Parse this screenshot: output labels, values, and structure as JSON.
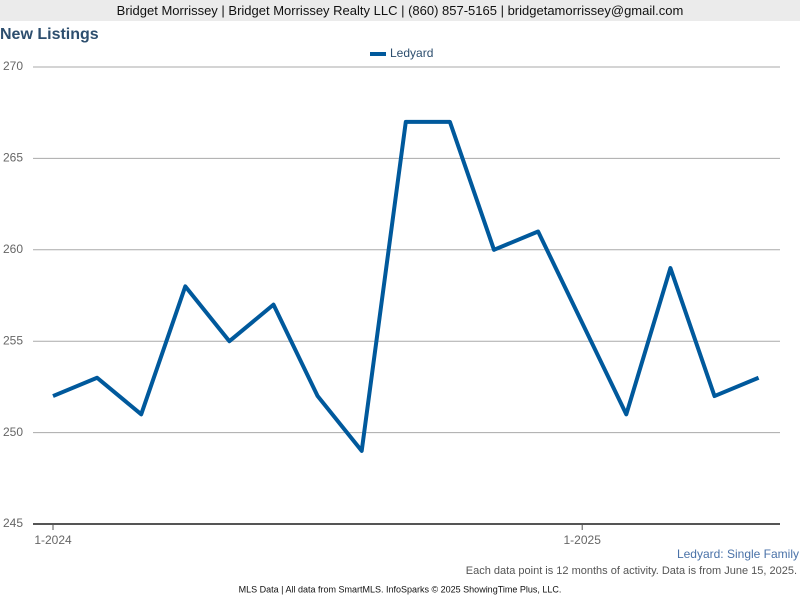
{
  "header": "Bridget Morrissey | Bridget Morrissey Realty LLC | (860) 857-5165 | bridgetamorrissey@gmail.com",
  "chart_data": {
    "type": "line",
    "title": "New Listings",
    "categories": [
      "1-2024",
      null,
      null,
      null,
      null,
      null,
      null,
      null,
      null,
      null,
      null,
      null,
      "1-2025",
      null,
      null,
      null,
      null
    ],
    "series": [
      {
        "name": "Ledyard",
        "color": "#00599c",
        "values": [
          252,
          253,
          251,
          258,
          255,
          257,
          252,
          249,
          267,
          267,
          260,
          261,
          256,
          251,
          259,
          252,
          253
        ]
      }
    ],
    "ylim": [
      245,
      270
    ],
    "yticks": [
      245,
      250,
      255,
      260,
      265,
      270
    ],
    "grid": true,
    "legend": "top",
    "annotation": "Ledyard: Single Family",
    "note": "Each data point is 12 months of activity. Data is from June 15, 2025."
  },
  "footer": "MLS Data | All data from SmartMLS. InfoSparks © 2025 ShowingTime Plus, LLC."
}
